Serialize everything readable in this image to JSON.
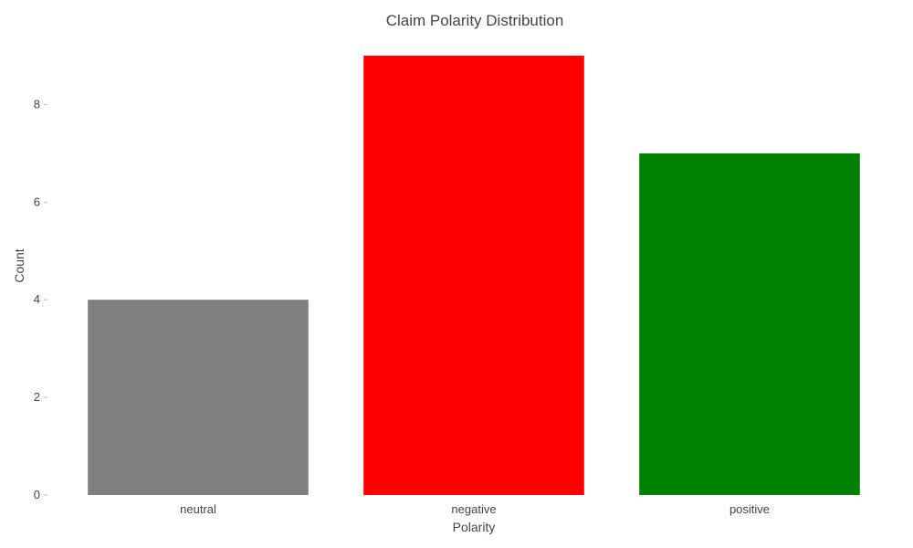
{
  "chart_data": {
    "type": "bar",
    "title": "Claim Polarity Distribution",
    "xlabel": "Polarity",
    "ylabel": "Count",
    "categories": [
      "neutral",
      "negative",
      "positive"
    ],
    "values": [
      4,
      9,
      7
    ],
    "colors": [
      "#808080",
      "#ff0000",
      "#008000"
    ],
    "yticks": [
      0,
      2,
      4,
      6,
      8
    ],
    "ylim": [
      0,
      9
    ],
    "grid": false,
    "legend": "none"
  }
}
